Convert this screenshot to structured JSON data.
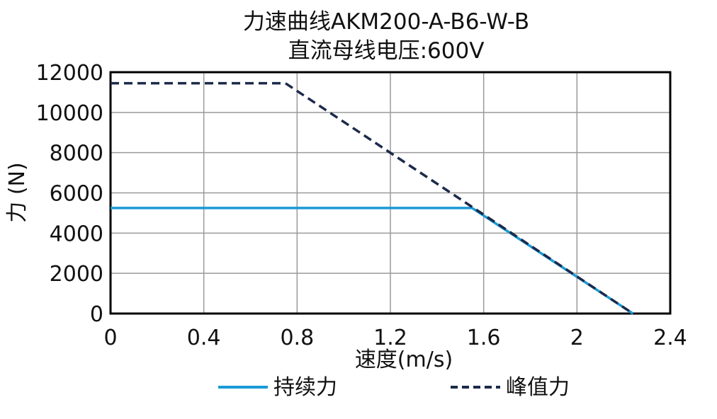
{
  "chart_data": {
    "type": "line",
    "title": "力速曲线AKM200-A-B6-W-B",
    "subtitle": "直流母线电压:600V",
    "xlabel": "速度(m/s)",
    "ylabel": "力 (N)",
    "xlim": [
      0,
      2.4
    ],
    "ylim": [
      0,
      12000
    ],
    "xticks": [
      0,
      0.4,
      0.8,
      1.2,
      1.6,
      2,
      2.4
    ],
    "xtick_labels": [
      "0",
      "0.4",
      "0.8",
      "1.2",
      "1.6",
      "2",
      "2.4"
    ],
    "yticks": [
      0,
      2000,
      4000,
      6000,
      8000,
      10000,
      12000
    ],
    "ytick_labels": [
      "0",
      "2000",
      "4000",
      "6000",
      "8000",
      "10000",
      "12000"
    ],
    "grid": true,
    "legend_position": "bottom",
    "series": [
      {
        "name": "持续力",
        "style": "solid",
        "color": "#1a9ad6",
        "x": [
          0,
          1.55,
          2.24
        ],
        "y": [
          5250,
          5250,
          0
        ]
      },
      {
        "name": "峰值力",
        "style": "dashed",
        "color": "#1c2a4a",
        "x": [
          0,
          0.75,
          2.24
        ],
        "y": [
          11450,
          11450,
          0
        ]
      }
    ]
  }
}
